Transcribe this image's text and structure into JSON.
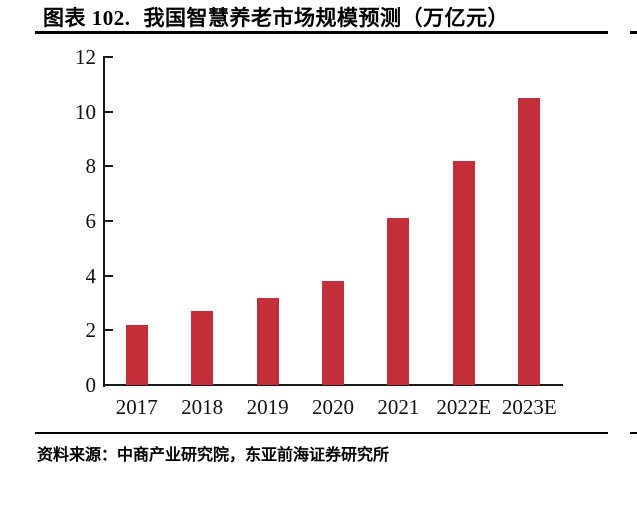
{
  "figure": {
    "label": "图表 102.",
    "title": "我国智慧养老市场规模预测（万亿元）",
    "source": "资料来源：中商产业研究院，东亚前海证券研究所"
  },
  "chart_data": {
    "type": "bar",
    "title": "我国智慧养老市场规模预测（万亿元）",
    "categories": [
      "2017",
      "2018",
      "2019",
      "2020",
      "2021",
      "2022E",
      "2023E"
    ],
    "values": [
      2.2,
      2.7,
      3.2,
      3.8,
      6.1,
      8.2,
      10.5
    ],
    "xlabel": "",
    "ylabel": "",
    "ylim": [
      0,
      12
    ],
    "yticks": [
      0,
      2,
      4,
      6,
      8,
      10,
      12
    ],
    "grid": false,
    "legend": "none",
    "bar_color": "#C22F3B"
  },
  "colors": {
    "bar": "#C22F3B",
    "text": "#000000",
    "axis": "#1a1a1a",
    "background": "#FFFFFF"
  }
}
